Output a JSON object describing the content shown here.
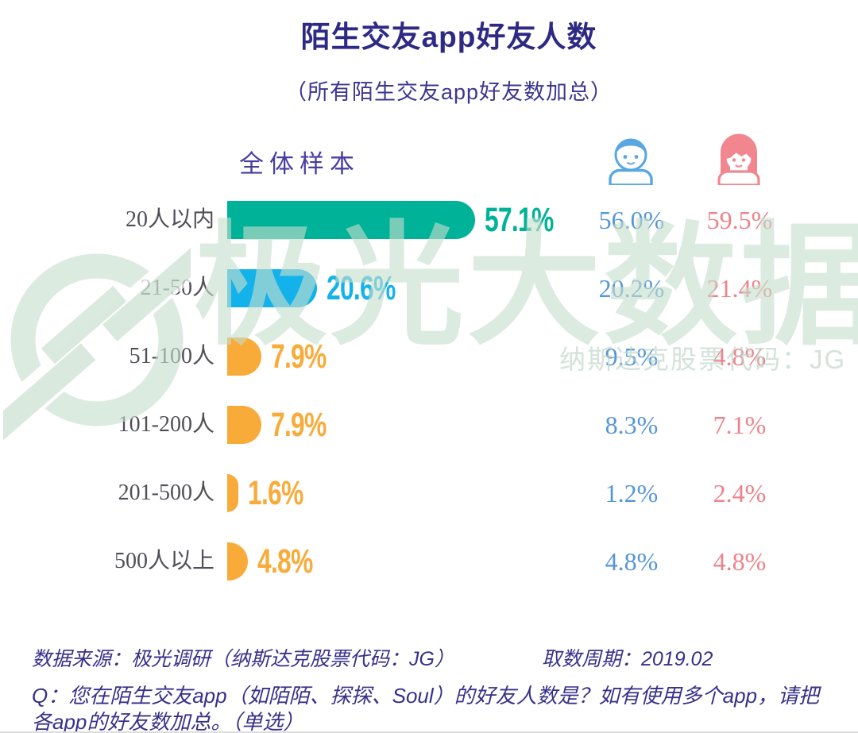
{
  "title": "陌生交友app好友人数",
  "subtitle": "（所有陌生交友app好友数加总）",
  "sample_label": "全体样本",
  "legend": {
    "male": "男性",
    "female": "女性"
  },
  "colors": {
    "title": "#2e2a84",
    "subtitle": "#3c3691",
    "sample_label": "#4a3da0",
    "category_text": "#4f4f58",
    "teal_bar": "#00b298",
    "blue_bar": "#14b2ea",
    "orange_bar": "#f9ab3a",
    "male_text": "#5596d8",
    "female_text": "#ee828b",
    "male_icon": "#58a7e2",
    "female_icon": "#f2868f",
    "footer_text": "#37318b",
    "watermark": "#cfe3d6"
  },
  "rows": [
    {
      "label": "20人以内",
      "value": 57.1,
      "display": "57.1%",
      "color": "#00b298",
      "male": "56.0%",
      "female": "59.5%"
    },
    {
      "label": "21-50人",
      "value": 20.6,
      "display": "20.6%",
      "color": "#14b2ea",
      "male": "20.2%",
      "female": "21.4%"
    },
    {
      "label": "51-100人",
      "value": 7.9,
      "display": "7.9%",
      "color": "#f9ab3a",
      "male": "9.5%",
      "female": "4.8%"
    },
    {
      "label": "101-200人",
      "value": 7.9,
      "display": "7.9%",
      "color": "#f9ab3a",
      "male": "8.3%",
      "female": "7.1%"
    },
    {
      "label": "201-500人",
      "value": 1.6,
      "display": "1.6%",
      "color": "#f9ab3a",
      "male": "1.2%",
      "female": "2.4%"
    },
    {
      "label": "500人以上",
      "value": 4.8,
      "display": "4.8%",
      "color": "#f9ab3a",
      "male": "4.8%",
      "female": "4.8%"
    }
  ],
  "chart_data": {
    "type": "bar",
    "orientation": "horizontal",
    "title": "陌生交友app好友人数",
    "subtitle": "（所有陌生交友app好友数加总）",
    "categories": [
      "20人以内",
      "21-50人",
      "51-100人",
      "101-200人",
      "201-500人",
      "500人以上"
    ],
    "series": [
      {
        "name": "全体样本",
        "values": [
          57.1,
          20.6,
          7.9,
          7.9,
          1.6,
          4.8
        ]
      },
      {
        "name": "男性",
        "values": [
          56.0,
          20.2,
          9.5,
          8.3,
          1.2,
          4.8
        ]
      },
      {
        "name": "女性",
        "values": [
          59.5,
          21.4,
          4.8,
          7.1,
          2.4,
          4.8
        ]
      }
    ],
    "unit": "%",
    "xlim": [
      0,
      60
    ],
    "grid": false,
    "legend_position": "top",
    "value_labels": true
  },
  "watermark": {
    "brand": "极光大数据",
    "note": "纳斯达克股票代码：JG"
  },
  "footer": {
    "source": "数据来源：极光调研（纳斯达克股票代码：JG）",
    "period": "取数周期：2019.02",
    "question_line1": "Q：您在陌生交友app（如陌陌、探探、Soul）的好友人数是？如有使用多个app，请把",
    "question_line2": "各app的好友数加总。（单选）"
  }
}
